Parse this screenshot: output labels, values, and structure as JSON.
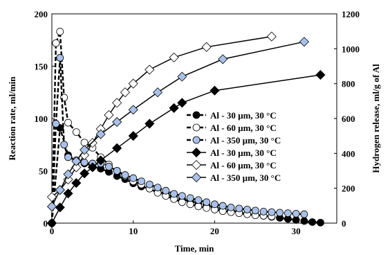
{
  "chart_data": {
    "type": "scatter",
    "xlabel": "Time, min",
    "ylabel_left": "Reaction rate,  ml/min",
    "ylabel_right": "Hydrogen release, ml/g of Al",
    "xlim": [
      0,
      35
    ],
    "ylim_left": [
      0,
      200
    ],
    "ylim_right": [
      0,
      1200
    ],
    "x_ticks": [
      0,
      10,
      20,
      30
    ],
    "y_left_ticks": [
      0,
      50,
      100,
      150,
      200
    ],
    "y_right_ticks": [
      0,
      200,
      400,
      600,
      800,
      1000,
      1200
    ],
    "grid": false,
    "legend_position": "center-right",
    "series": [
      {
        "name": "Al - 30 µm, 30 °C",
        "axis": "left",
        "marker": "circle",
        "fill": "#000000",
        "line": "dashed",
        "x": [
          0,
          1,
          2,
          3,
          4,
          5,
          6,
          7,
          8,
          9,
          10,
          11,
          12,
          13,
          14,
          15,
          16,
          17,
          18,
          19,
          20,
          21,
          22,
          23,
          24,
          25,
          26,
          27,
          28,
          29,
          30,
          31,
          32,
          33
        ],
        "y": [
          0,
          91,
          65,
          60,
          57,
          55,
          52,
          49,
          45,
          42,
          38,
          35,
          33,
          30,
          28,
          25,
          23,
          21,
          19,
          17,
          15,
          13.5,
          12,
          10.5,
          9,
          8,
          7,
          6,
          5,
          4,
          3,
          2,
          1,
          0.5
        ]
      },
      {
        "name": "Al - 60 µm, 30 °C",
        "axis": "left",
        "marker": "circle",
        "fill": "#ffffff",
        "line": "dashed",
        "x": [
          0,
          0.5,
          1,
          1.5,
          2,
          3,
          4,
          5,
          6,
          7,
          8,
          9,
          10,
          11,
          12,
          13,
          14,
          15,
          16,
          17,
          18,
          19,
          20,
          21,
          22,
          23,
          24,
          25,
          26,
          27
        ],
        "y": [
          0,
          172,
          183,
          120,
          96,
          87,
          77,
          72,
          63,
          56,
          50,
          45,
          40,
          37,
          33,
          29,
          26,
          23,
          20,
          18,
          16,
          14.5,
          13,
          11.5,
          10.5,
          9.5,
          8.5,
          7.5,
          7,
          6.5
        ]
      },
      {
        "name": "Al - 350 µm, 30 °C",
        "axis": "left",
        "marker": "circle",
        "fill": "#a9c1e8",
        "line": "dashed",
        "x": [
          0,
          0.5,
          1,
          1.5,
          2,
          3,
          4,
          5,
          6,
          7,
          8,
          9,
          10,
          11,
          12,
          13,
          14,
          15,
          16,
          17,
          18,
          19,
          20,
          21,
          22,
          23,
          24,
          25,
          26,
          27,
          28,
          29,
          30,
          31
        ],
        "y": [
          0,
          95,
          158,
          75,
          63,
          60,
          58,
          57,
          57,
          54,
          50,
          46,
          43,
          40,
          37,
          34,
          31,
          28,
          26,
          24,
          22,
          20,
          18,
          16.5,
          15,
          14,
          13,
          12,
          11,
          10.5,
          10,
          9.5,
          9,
          8.5
        ]
      },
      {
        "name": "Al - 30 µm, 30 °C",
        "axis": "right",
        "marker": "diamond",
        "fill": "#000000",
        "line": "solid",
        "x": [
          0,
          1,
          2,
          3,
          4,
          5,
          6,
          8,
          10,
          12,
          15,
          16,
          20,
          33
        ],
        "y": [
          0,
          90,
          170,
          230,
          285,
          320,
          360,
          430,
          500,
          570,
          660,
          690,
          760,
          850
        ]
      },
      {
        "name": "Al - 60 µm, 30 °C",
        "axis": "right",
        "marker": "diamond",
        "fill": "#ffffff",
        "line": "solid",
        "x": [
          0,
          1,
          2,
          3,
          4,
          5,
          6,
          7,
          8,
          9,
          10,
          12,
          15,
          19,
          27
        ],
        "y": [
          150,
          190,
          250,
          320,
          390,
          460,
          540,
          620,
          690,
          750,
          800,
          880,
          950,
          1010,
          1070
        ]
      },
      {
        "name": "Al - 350 µm, 30 °C",
        "axis": "right",
        "marker": "diamond",
        "fill": "#a9c1e8",
        "line": "solid",
        "x": [
          0,
          1,
          2,
          3,
          4,
          6,
          8,
          10,
          13,
          16,
          21,
          31
        ],
        "y": [
          95,
          190,
          280,
          355,
          420,
          510,
          580,
          650,
          750,
          840,
          940,
          1040
        ]
      }
    ]
  }
}
